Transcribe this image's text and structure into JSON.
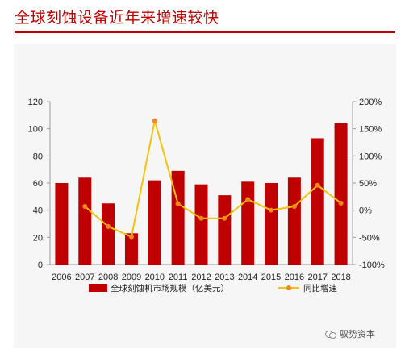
{
  "title": "全球刻蚀设备近年来增速较快",
  "watermark": "驭势资本",
  "chart_data": {
    "type": "bar+line",
    "categories": [
      "2006",
      "2007",
      "2008",
      "2009",
      "2010",
      "2011",
      "2012",
      "2013",
      "2014",
      "2015",
      "2016",
      "2017",
      "2018"
    ],
    "left_axis": {
      "ticks": [
        "0",
        "20",
        "40",
        "60",
        "80",
        "100",
        "120"
      ],
      "ylim": [
        0,
        120
      ]
    },
    "right_axis": {
      "ticks": [
        "-100%",
        "-50%",
        "0%",
        "50%",
        "100%",
        "150%",
        "200%"
      ],
      "ylim": [
        -100,
        200
      ]
    },
    "series": [
      {
        "name": "全球刻蚀机市场规模（亿美元）",
        "type": "bar",
        "axis": "left",
        "color": "#c00000",
        "values": [
          60,
          64,
          45,
          23,
          62,
          69,
          59,
          51,
          61,
          60,
          64,
          93,
          104
        ]
      },
      {
        "name": "同比增速",
        "type": "line",
        "axis": "right",
        "color": "#f5c20b",
        "marker_color": "#f08a1c",
        "values": [
          null,
          7,
          -30,
          -49,
          165,
          12,
          -15,
          -15,
          20,
          0,
          7,
          46,
          13
        ]
      }
    ],
    "grid": false,
    "legend": "bottom"
  }
}
